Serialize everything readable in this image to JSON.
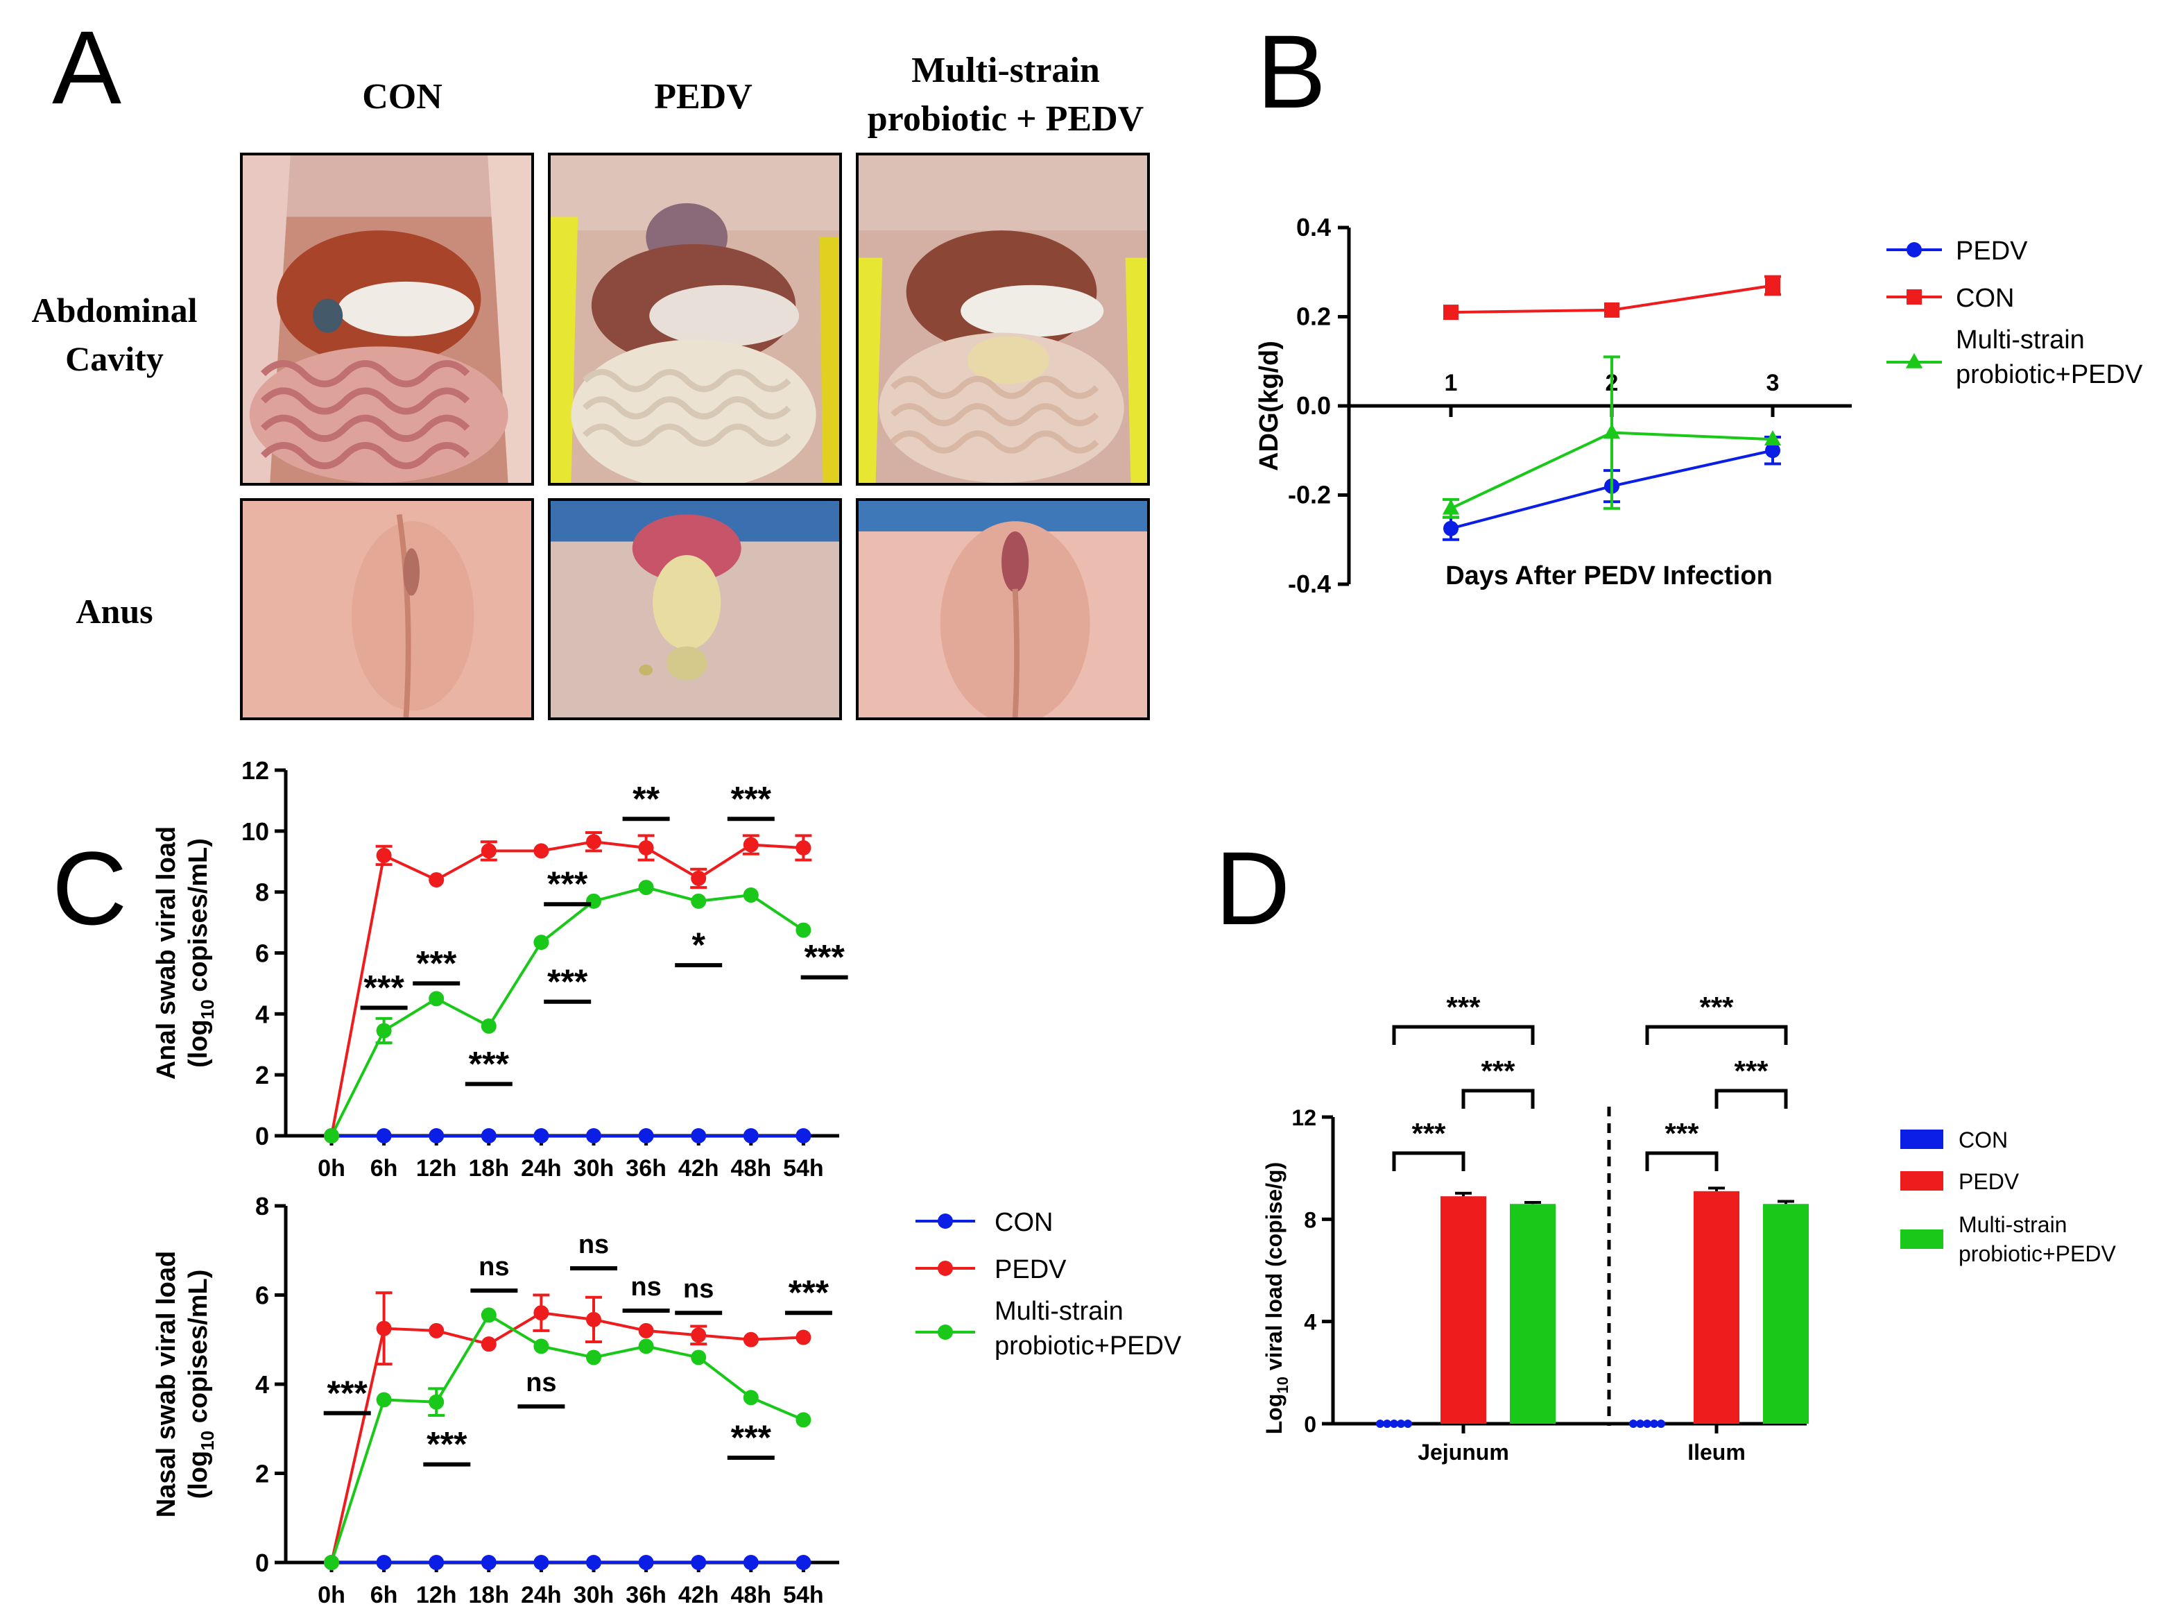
{
  "panels": {
    "a": "A",
    "b": "B",
    "c": "C",
    "d": "D"
  },
  "panelA": {
    "columns": [
      "CON",
      "PEDV",
      "Multi-strain",
      "probiotic + PEDV"
    ],
    "rows": [
      "Abdominal",
      "Cavity",
      "Anus"
    ]
  },
  "colors": {
    "blue": "#0a1ee6",
    "red": "#ee1c1c",
    "green": "#19c819",
    "black": "#000000"
  },
  "chart_data": [
    {
      "id": "B",
      "type": "line",
      "ylabel": "ADG(kg/d)",
      "xlabel": "Days After PEDV Infection",
      "ylim": [
        -0.4,
        0.4
      ],
      "yticks": [
        -0.4,
        -0.2,
        0.0,
        0.2,
        0.4
      ],
      "ytick_labels": [
        "-0.4",
        "-0.2",
        "0.0",
        "0.2",
        "0.4"
      ],
      "x": [
        1,
        2,
        3
      ],
      "xtick_labels": [
        "1",
        "2",
        "3"
      ],
      "legend": [
        "PEDV",
        "CON",
        "Multi-strain",
        "probiotic+PEDV"
      ],
      "series": [
        {
          "name": "PEDV",
          "color": "#0a1ee6",
          "marker": "circle",
          "values": [
            -0.275,
            -0.18,
            -0.1
          ],
          "errors": [
            0.025,
            0.035,
            0.03
          ]
        },
        {
          "name": "CON",
          "color": "#ee1c1c",
          "marker": "square",
          "values": [
            0.21,
            0.215,
            0.27
          ],
          "errors": [
            0.0,
            0.0,
            0.02
          ]
        },
        {
          "name": "Multi-strain probiotic+PEDV",
          "color": "#19c819",
          "marker": "triangle",
          "values": [
            -0.23,
            -0.06,
            -0.075
          ],
          "errors": [
            0.02,
            0.17,
            0.0
          ]
        }
      ]
    },
    {
      "id": "C-top",
      "type": "line",
      "ylabel_lines": [
        "Anal swab viral load",
        "(log",
        "10",
        " copises/mL)"
      ],
      "ylim": [
        0,
        12
      ],
      "yticks": [
        0,
        2,
        4,
        6,
        8,
        10,
        12
      ],
      "ytick_labels": [
        "0",
        "2",
        "4",
        "6",
        "8",
        "10",
        "12"
      ],
      "categories": [
        "0h",
        "6h",
        "12h",
        "18h",
        "24h",
        "30h",
        "36h",
        "42h",
        "48h",
        "54h"
      ],
      "series": [
        {
          "name": "CON",
          "color": "#0a1ee6",
          "values": [
            0,
            0,
            0,
            0,
            0,
            0,
            0,
            0,
            0,
            0
          ],
          "errors": [
            0,
            0,
            0,
            0,
            0,
            0,
            0,
            0,
            0,
            0
          ]
        },
        {
          "name": "PEDV",
          "color": "#ee1c1c",
          "values": [
            0,
            9.2,
            8.4,
            9.35,
            9.35,
            9.65,
            9.45,
            8.45,
            9.55,
            9.45
          ],
          "errors": [
            0,
            0.3,
            0,
            0.3,
            0,
            0.3,
            0.4,
            0.3,
            0.3,
            0.4
          ]
        },
        {
          "name": "Multi-strain probiotic+PEDV",
          "color": "#19c819",
          "values": [
            0,
            3.45,
            4.5,
            3.6,
            6.35,
            7.7,
            8.15,
            7.7,
            7.9,
            6.75
          ],
          "errors": [
            0,
            0.4,
            0,
            0,
            0,
            0,
            0,
            0,
            0,
            0
          ]
        }
      ],
      "annotations": [
        {
          "text": "***",
          "index": 1,
          "pos": "above",
          "value": 4.2
        },
        {
          "text": "***",
          "index": 2,
          "pos": "above",
          "value": 5.0
        },
        {
          "text": "***",
          "index": 3,
          "pos": "below",
          "value": 1.7
        },
        {
          "text": "***",
          "index": 4.5,
          "pos": "above",
          "value": 7.6
        },
        {
          "text": "***",
          "index": 4.5,
          "pos": "below",
          "value": 4.4
        },
        {
          "text": "**",
          "index": 6,
          "pos": "above",
          "value": 10.4
        },
        {
          "text": "*",
          "index": 7,
          "pos": "above",
          "value": 5.6
        },
        {
          "text": "***",
          "index": 8,
          "pos": "above",
          "value": 10.4
        },
        {
          "text": "***",
          "index": 9.4,
          "pos": "above",
          "value": 5.2
        }
      ]
    },
    {
      "id": "C-bottom",
      "type": "line",
      "ylabel_lines": [
        "Nasal swab viral load",
        "(log",
        "10",
        " copises/mL)"
      ],
      "ylim": [
        0,
        8
      ],
      "yticks": [
        0,
        2,
        4,
        6,
        8
      ],
      "ytick_labels": [
        "0",
        "2",
        "4",
        "6",
        "8"
      ],
      "categories": [
        "0h",
        "6h",
        "12h",
        "18h",
        "24h",
        "30h",
        "36h",
        "42h",
        "48h",
        "54h"
      ],
      "legend": [
        "CON",
        "PEDV",
        "Multi-strain",
        "probiotic+PEDV"
      ],
      "series": [
        {
          "name": "CON",
          "color": "#0a1ee6",
          "values": [
            0,
            0,
            0,
            0,
            0,
            0,
            0,
            0,
            0,
            0
          ],
          "errors": [
            0,
            0,
            0,
            0,
            0,
            0,
            0,
            0,
            0,
            0
          ]
        },
        {
          "name": "PEDV",
          "color": "#ee1c1c",
          "values": [
            0,
            5.25,
            5.2,
            4.9,
            5.6,
            5.45,
            5.2,
            5.1,
            5.0,
            5.05
          ],
          "errors": [
            0,
            0.8,
            0,
            0,
            0.4,
            0.5,
            0,
            0.2,
            0,
            0
          ]
        },
        {
          "name": "Multi-strain probiotic+PEDV",
          "color": "#19c819",
          "values": [
            0,
            3.65,
            3.6,
            5.55,
            4.85,
            4.6,
            4.85,
            4.6,
            3.7,
            3.2
          ],
          "errors": [
            0,
            0,
            0.3,
            0,
            0,
            0,
            0,
            0,
            0,
            0
          ]
        }
      ],
      "annotations": [
        {
          "text": "***",
          "index": 0.3,
          "pos": "above",
          "value": 3.35
        },
        {
          "text": "***",
          "index": 2.2,
          "pos": "below",
          "value": 2.2
        },
        {
          "text": "ns",
          "index": 3.1,
          "pos": "above",
          "value": 6.1
        },
        {
          "text": "ns",
          "index": 4.0,
          "pos": "above",
          "value": 3.5
        },
        {
          "text": "ns",
          "index": 5.0,
          "pos": "above",
          "value": 6.6
        },
        {
          "text": "ns",
          "index": 6.0,
          "pos": "above",
          "value": 5.65
        },
        {
          "text": "ns",
          "index": 7.0,
          "pos": "above",
          "value": 5.6
        },
        {
          "text": "***",
          "index": 8.0,
          "pos": "below",
          "value": 2.35
        },
        {
          "text": "***",
          "index": 9.1,
          "pos": "above",
          "value": 5.6
        }
      ]
    },
    {
      "id": "D",
      "type": "bar",
      "ylabel_parts": [
        "Log",
        "10",
        " viral load (copise/g)"
      ],
      "ylim": [
        0,
        12
      ],
      "yticks": [
        0,
        4,
        8,
        12
      ],
      "ytick_labels": [
        "0",
        "4",
        "8",
        "12"
      ],
      "categories": [
        "Jejunum",
        "Ileum"
      ],
      "legend": [
        "CON",
        "PEDV",
        "Multi-strain",
        "probiotic+PEDV"
      ],
      "series": [
        {
          "name": "CON",
          "color": "#0a1ee6",
          "values": [
            0,
            0
          ],
          "errors": [
            0,
            0
          ]
        },
        {
          "name": "PEDV",
          "color": "#ee1c1c",
          "values": [
            8.9,
            9.1
          ],
          "errors": [
            0.12,
            0.12
          ]
        },
        {
          "name": "Multi-strain probiotic+PEDV",
          "color": "#19c819",
          "values": [
            8.6,
            8.6
          ],
          "errors": [
            0.06,
            0.1
          ]
        }
      ],
      "significance": [
        "***",
        "***",
        "***",
        "***",
        "***",
        "***"
      ]
    }
  ]
}
